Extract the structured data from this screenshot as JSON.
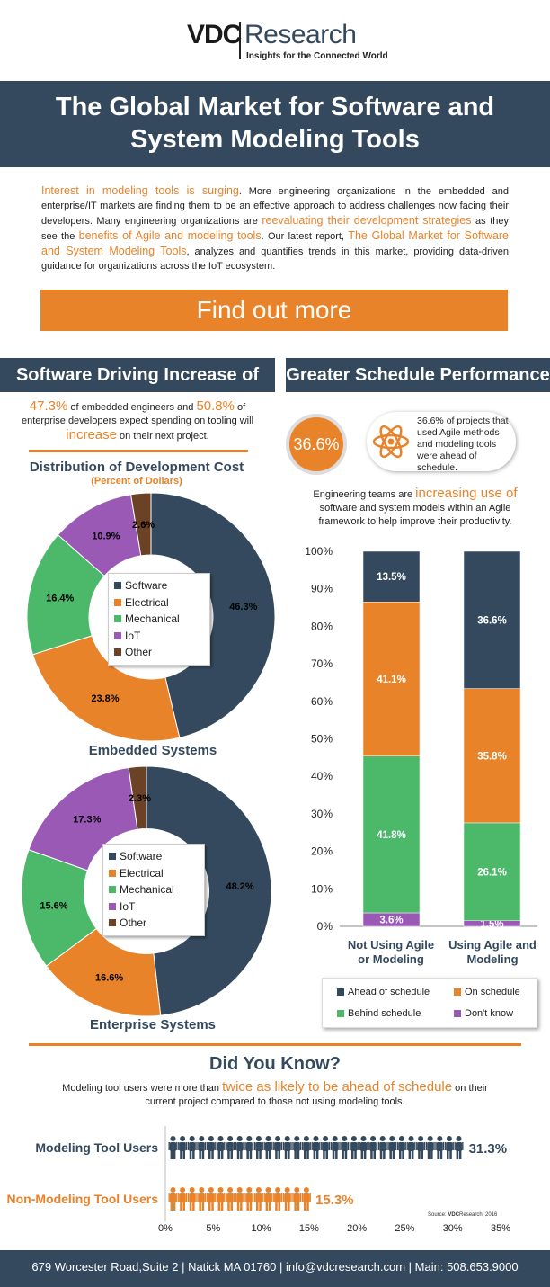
{
  "logo": {
    "vdc": "VDC",
    "research": "Research",
    "tagline": "Insights for the Connected World"
  },
  "title": {
    "line1": "The Global Market for Software and",
    "line2": "System Modeling Tools"
  },
  "intro": {
    "p1": "Interest in modeling tools is surging",
    "p2": ". More engineering organizations in the embedded and enterprise/IT markets are finding them to be an effective approach to address challenges now facing their developers. Many engineering organizations are ",
    "p3": "reevaluating their development strategies",
    "p4": " as they see the ",
    "p5": "benefits of Agile and modeling tools",
    "p6": ". Our latest report, ",
    "p7": "The Global Market for Software and System Modeling Tools",
    "p8": ", analyzes and quantifies trends in this market, providing data-driven guidance for organizations across the IoT ecosystem."
  },
  "cta": {
    "label": "Find out more"
  },
  "left_section": {
    "heading": "Software Driving Increase of Cost",
    "stat_a": "47.3%",
    "stat_b": " of embedded engineers and ",
    "stat_c": "50.8%",
    "stat_d": " of enterprise developers expect spending on tooling will ",
    "stat_e": "increase",
    "stat_f": " on their next project.",
    "dist_title": "Distribution of Development Cost",
    "dist_subtitle": "(Percent of Dollars)"
  },
  "right_section": {
    "heading": "Greater Schedule Performance",
    "circle_value": "36.6%",
    "pill_text": "36.6% of projects that used Agile methods and modeling tools were ahead of schedule.",
    "eng_a": "Engineering teams are ",
    "eng_b": "increasing use of",
    "eng_c": " software and system models within an Agile framework to help improve their productivity."
  },
  "colors": {
    "navy": "#34495e",
    "orange": "#e8832a",
    "green": "#4cb86a",
    "purple": "#9b59b6",
    "brown": "#6b4226"
  },
  "chart_data": [
    {
      "type": "pie",
      "title": "Embedded Systems",
      "labels": [
        "Software",
        "Electrical",
        "Mechanical",
        "IoT",
        "Other"
      ],
      "values": [
        46.3,
        23.8,
        16.4,
        10.9,
        2.6
      ],
      "value_labels": [
        "46.3%",
        "23.8%",
        "16.4%",
        "10.9%",
        "2.6%"
      ],
      "colors": [
        "#34495e",
        "#e8832a",
        "#4cb86a",
        "#9b59b6",
        "#6b4226"
      ]
    },
    {
      "type": "pie",
      "title": "Enterprise Systems",
      "labels": [
        "Software",
        "Electrical",
        "Mechanical",
        "IoT",
        "Other"
      ],
      "values": [
        48.2,
        16.6,
        15.6,
        17.3,
        2.3
      ],
      "value_labels": [
        "48.2%",
        "16.6%",
        "15.6%",
        "17.3%",
        "2.3%"
      ],
      "colors": [
        "#34495e",
        "#e8832a",
        "#4cb86a",
        "#9b59b6",
        "#6b4226"
      ]
    },
    {
      "type": "bar",
      "stacked": true,
      "categories": [
        "Not Using Agile or Modeling",
        "Using Agile and Modeling"
      ],
      "category_lines": [
        [
          "Not Using Agile",
          "or Modeling"
        ],
        [
          "Using Agile and",
          "Modeling"
        ]
      ],
      "series": [
        {
          "name": "Don't know",
          "values": [
            3.6,
            1.5
          ],
          "labels": [
            "3.6%",
            "1.5%"
          ],
          "color": "#9b59b6"
        },
        {
          "name": "Behind schedule",
          "values": [
            41.8,
            26.1
          ],
          "labels": [
            "41.8%",
            "26.1%"
          ],
          "color": "#4cb86a"
        },
        {
          "name": "On schedule",
          "values": [
            41.1,
            35.8
          ],
          "labels": [
            "41.1%",
            "35.8%"
          ],
          "color": "#e8832a"
        },
        {
          "name": "Ahead of schedule",
          "values": [
            13.5,
            36.6
          ],
          "labels": [
            "13.5%",
            "36.6%"
          ],
          "color": "#34495e"
        }
      ],
      "yticks": [
        "0%",
        "10%",
        "20%",
        "30%",
        "40%",
        "50%",
        "60%",
        "70%",
        "80%",
        "90%",
        "100%"
      ],
      "ylim": [
        0,
        100
      ],
      "legend_order": [
        "Ahead of schedule",
        "On schedule",
        "Behind schedule",
        "Don't know"
      ]
    },
    {
      "type": "bar",
      "orientation": "horizontal",
      "style": "pictogram",
      "categories": [
        "Modeling Tool Users",
        "Non-Modeling Tool Users"
      ],
      "values": [
        31.3,
        15.3
      ],
      "value_labels": [
        "31.3%",
        "15.3%"
      ],
      "colors": [
        "#34495e",
        "#e8832a"
      ],
      "xticks": [
        "0%",
        "5%",
        "10%",
        "15%",
        "20%",
        "25%",
        "30%",
        "35%"
      ],
      "xlim": [
        0,
        35
      ]
    }
  ],
  "did_you_know": {
    "title": "Did You Know?",
    "a": "Modeling tool users were more than ",
    "b": "twice as likely to be ahead of schedule",
    "c": " on their current project compared to those not using modeling tools.",
    "source_prefix": "Source:",
    "source_brand": "VDC",
    "source_rest": "Research, 2016"
  },
  "footer": {
    "text": "679 Worcester Road,Suite 2  | Natick MA 01760 | info@vdcresearch.com | Main: 508.653.9000"
  }
}
